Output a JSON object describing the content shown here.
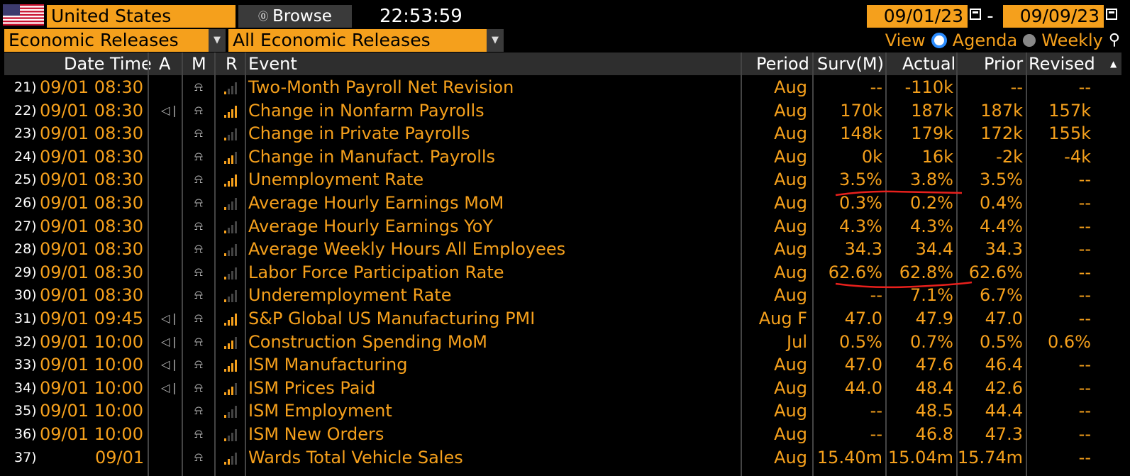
{
  "toolbar": {
    "country": "United States",
    "browse_label": "Browse",
    "time": "22:53:59",
    "date_from": "09/01/23",
    "date_sep": "-",
    "date_to": "09/09/23",
    "releases_select": "Economic Releases",
    "filter_select": "All Economic Releases",
    "view_label": "View",
    "agenda_label": "Agenda",
    "weekly_label": "Weekly",
    "view_selected": "Agenda"
  },
  "columns": {
    "datetime": "Date Time",
    "a": "A",
    "m": "M",
    "r": "R",
    "event": "Event",
    "period": "Period",
    "survey": "Surv(M)",
    "actual": "Actual",
    "prior": "Prior",
    "revised": "Revised"
  },
  "colors": {
    "accent": "#f5a01c",
    "header_bg": "#2e2e2e",
    "background": "#000000",
    "annotation": "#e8201c"
  },
  "icons": {
    "speaker": "speaker-icon",
    "bell": "bell-icon",
    "relevance": "relevance-bars-icon",
    "calendar": "calendar-icon",
    "zoom": "zoom-icon"
  },
  "rows": [
    {
      "num": "21)",
      "datetime": "09/01 08:30",
      "speaker": false,
      "bars": 1,
      "event": "Two-Month Payroll Net Revision",
      "period": "Aug",
      "survey": "--",
      "actual": "-110k",
      "prior": "--",
      "revised": "--"
    },
    {
      "num": "22)",
      "datetime": "09/01 08:30",
      "speaker": true,
      "bars": 4,
      "event": "Change in Nonfarm Payrolls",
      "period": "Aug",
      "survey": "170k",
      "actual": "187k",
      "prior": "187k",
      "revised": "157k"
    },
    {
      "num": "23)",
      "datetime": "09/01 08:30",
      "speaker": false,
      "bars": 1,
      "event": "Change in Private Payrolls",
      "period": "Aug",
      "survey": "148k",
      "actual": "179k",
      "prior": "172k",
      "revised": "155k"
    },
    {
      "num": "24)",
      "datetime": "09/01 08:30",
      "speaker": false,
      "bars": 3,
      "event": "Change in Manufact. Payrolls",
      "period": "Aug",
      "survey": "0k",
      "actual": "16k",
      "prior": "-2k",
      "revised": "-4k"
    },
    {
      "num": "25)",
      "datetime": "09/01 08:30",
      "speaker": false,
      "bars": 4,
      "event": "Unemployment Rate",
      "period": "Aug",
      "survey": "3.5%",
      "actual": "3.8%",
      "prior": "3.5%",
      "revised": "--"
    },
    {
      "num": "26)",
      "datetime": "09/01 08:30",
      "speaker": false,
      "bars": 1,
      "event": "Average Hourly Earnings MoM",
      "period": "Aug",
      "survey": "0.3%",
      "actual": "0.2%",
      "prior": "0.4%",
      "revised": "--"
    },
    {
      "num": "27)",
      "datetime": "09/01 08:30",
      "speaker": false,
      "bars": 1,
      "event": "Average Hourly Earnings YoY",
      "period": "Aug",
      "survey": "4.3%",
      "actual": "4.3%",
      "prior": "4.4%",
      "revised": "--"
    },
    {
      "num": "28)",
      "datetime": "09/01 08:30",
      "speaker": false,
      "bars": 1,
      "event": "Average Weekly Hours All Employees",
      "period": "Aug",
      "survey": "34.3",
      "actual": "34.4",
      "prior": "34.3",
      "revised": "--"
    },
    {
      "num": "29)",
      "datetime": "09/01 08:30",
      "speaker": false,
      "bars": 1,
      "event": "Labor Force Participation Rate",
      "period": "Aug",
      "survey": "62.6%",
      "actual": "62.8%",
      "prior": "62.6%",
      "revised": "--"
    },
    {
      "num": "30)",
      "datetime": "09/01 08:30",
      "speaker": false,
      "bars": 1,
      "event": "Underemployment Rate",
      "period": "Aug",
      "survey": "--",
      "actual": "7.1%",
      "prior": "6.7%",
      "revised": "--"
    },
    {
      "num": "31)",
      "datetime": "09/01 09:45",
      "speaker": true,
      "bars": 4,
      "event": "S&P Global US Manufacturing PMI",
      "period": "Aug F",
      "survey": "47.0",
      "actual": "47.9",
      "prior": "47.0",
      "revised": "--"
    },
    {
      "num": "32)",
      "datetime": "09/01 10:00",
      "speaker": true,
      "bars": 3,
      "event": "Construction Spending MoM",
      "period": "Jul",
      "survey": "0.5%",
      "actual": "0.7%",
      "prior": "0.5%",
      "revised": "0.6%"
    },
    {
      "num": "33)",
      "datetime": "09/01 10:00",
      "speaker": true,
      "bars": 4,
      "event": "ISM Manufacturing",
      "period": "Aug",
      "survey": "47.0",
      "actual": "47.6",
      "prior": "46.4",
      "revised": "--"
    },
    {
      "num": "34)",
      "datetime": "09/01 10:00",
      "speaker": true,
      "bars": 3,
      "event": "ISM Prices Paid",
      "period": "Aug",
      "survey": "44.0",
      "actual": "48.4",
      "prior": "42.6",
      "revised": "--"
    },
    {
      "num": "35)",
      "datetime": "09/01 10:00",
      "speaker": false,
      "bars": 1,
      "event": "ISM Employment",
      "period": "Aug",
      "survey": "--",
      "actual": "48.5",
      "prior": "44.4",
      "revised": "--"
    },
    {
      "num": "36)",
      "datetime": "09/01 10:00",
      "speaker": false,
      "bars": 1,
      "event": "ISM New Orders",
      "period": "Aug",
      "survey": "--",
      "actual": "46.8",
      "prior": "47.3",
      "revised": "--"
    },
    {
      "num": "37)",
      "datetime": "09/01",
      "speaker": false,
      "bars": 2,
      "event": "Wards Total Vehicle Sales",
      "period": "Aug",
      "survey": "15.40m",
      "actual": "15.04m",
      "prior": "15.74m",
      "revised": "--"
    }
  ]
}
